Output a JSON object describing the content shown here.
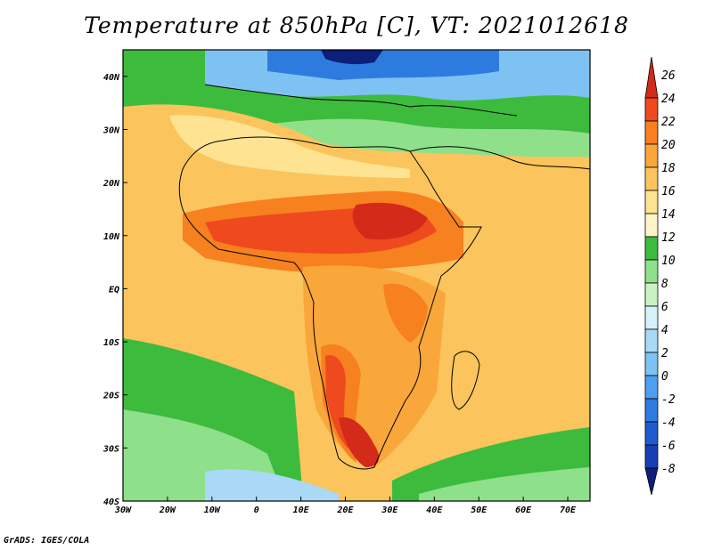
{
  "title": "Temperature at 850hPa [C], VT: 2021012618",
  "credit": "GrADS: IGES/COLA",
  "map": {
    "projection": "lat-lon",
    "lon_range": [
      -30,
      75
    ],
    "lat_range": [
      -40,
      45
    ],
    "lon_ticks": [
      "30W",
      "20W",
      "10W",
      "0",
      "10E",
      "20E",
      "30E",
      "40E",
      "50E",
      "60E",
      "70E"
    ],
    "lat_ticks": [
      "40N",
      "30N",
      "20N",
      "10N",
      "EQ",
      "10S",
      "20S",
      "30S",
      "40S"
    ]
  },
  "colorbar": {
    "levels": [
      "26",
      "24",
      "22",
      "20",
      "18",
      "16",
      "14",
      "12",
      "10",
      "8",
      "6",
      "4",
      "2",
      "0",
      "-2",
      "-4",
      "-6",
      "-8"
    ],
    "colors": [
      "#d42a1a",
      "#ee4a1e",
      "#f7801f",
      "#f9a63a",
      "#fbc45c",
      "#fde392",
      "#fdf5c8",
      "#3dbb3d",
      "#8ee08a",
      "#c8f2c4",
      "#d6f1fa",
      "#a9d9f6",
      "#7ec2f3",
      "#4e9ff0",
      "#2e7be0",
      "#1f5bcf",
      "#163fb5",
      "#0c1f7a"
    ]
  }
}
